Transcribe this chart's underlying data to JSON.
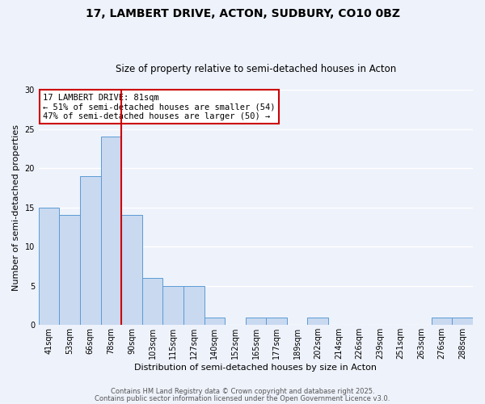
{
  "title": "17, LAMBERT DRIVE, ACTON, SUDBURY, CO10 0BZ",
  "subtitle": "Size of property relative to semi-detached houses in Acton",
  "xlabel": "Distribution of semi-detached houses by size in Acton",
  "ylabel": "Number of semi-detached properties",
  "bar_values": [
    15,
    14,
    19,
    24,
    14,
    6,
    5,
    5,
    1,
    0,
    1,
    1,
    0,
    1,
    0,
    0,
    0,
    0,
    0,
    1,
    1
  ],
  "bar_labels": [
    "41sqm",
    "53sqm",
    "66sqm",
    "78sqm",
    "90sqm",
    "103sqm",
    "115sqm",
    "127sqm",
    "140sqm",
    "152sqm",
    "165sqm",
    "177sqm",
    "189sqm",
    "202sqm",
    "214sqm",
    "226sqm",
    "239sqm",
    "251sqm",
    "263sqm",
    "276sqm",
    "288sqm"
  ],
  "bar_color": "#c9d9f0",
  "bar_edge_color": "#5b9bd5",
  "ylim": [
    0,
    30
  ],
  "yticks": [
    0,
    5,
    10,
    15,
    20,
    25,
    30
  ],
  "red_line_index": 3,
  "red_line_color": "#cc0000",
  "annotation_title": "17 LAMBERT DRIVE: 81sqm",
  "annotation_line1": "← 51% of semi-detached houses are smaller (54)",
  "annotation_line2": "47% of semi-detached houses are larger (50) →",
  "annotation_box_color": "#ffffff",
  "annotation_box_edge": "#cc0000",
  "footer_line1": "Contains HM Land Registry data © Crown copyright and database right 2025.",
  "footer_line2": "Contains public sector information licensed under the Open Government Licence v3.0.",
  "background_color": "#eef2fb",
  "grid_color": "#ffffff",
  "title_fontsize": 10,
  "subtitle_fontsize": 8.5,
  "axis_label_fontsize": 8,
  "tick_label_fontsize": 7,
  "footer_fontsize": 6,
  "annotation_fontsize": 7.5
}
